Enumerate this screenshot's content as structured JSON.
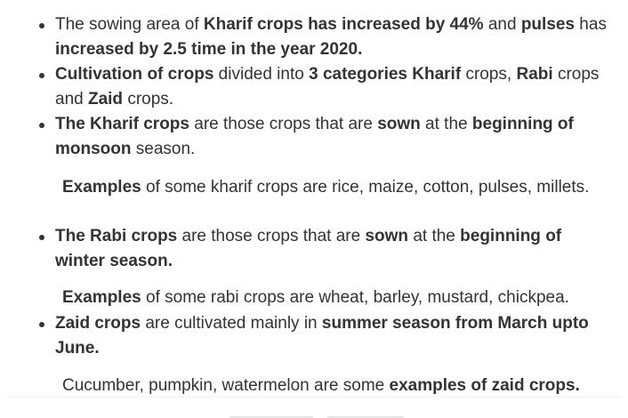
{
  "list1": [
    {
      "segments": [
        {
          "t": "The sowing area of ",
          "b": false
        },
        {
          "t": "Kharif crops has increased by 44%",
          "b": true
        },
        {
          "t": " and ",
          "b": false
        },
        {
          "t": "pulses",
          "b": true
        },
        {
          "t": " has ",
          "b": false
        },
        {
          "t": "increased by 2.5 time in the year 2020.",
          "b": true
        }
      ]
    },
    {
      "segments": [
        {
          "t": "Cultivation of crops",
          "b": true
        },
        {
          "t": " divided into ",
          "b": false
        },
        {
          "t": "3 categories Kharif",
          "b": true
        },
        {
          "t": " crops, ",
          "b": false
        },
        {
          "t": "Rabi",
          "b": true
        },
        {
          "t": " crops and ",
          "b": false
        },
        {
          "t": "Zaid",
          "b": true
        },
        {
          "t": " crops.",
          "b": false
        }
      ]
    },
    {
      "segments": [
        {
          "t": "The Kharif crops",
          "b": true
        },
        {
          "t": " are those crops that are ",
          "b": false
        },
        {
          "t": "sown",
          "b": true
        },
        {
          "t": " at the ",
          "b": false
        },
        {
          "t": "beginning of monsoon",
          "b": true
        },
        {
          "t": " season.",
          "b": false
        }
      ]
    }
  ],
  "para1": {
    "segments": [
      {
        "t": "Examples",
        "b": true
      },
      {
        "t": " of some kharif crops are rice, maize, cotton, pulses, millets.",
        "b": false
      }
    ]
  },
  "list2": [
    {
      "segments": [
        {
          "t": "The Rabi crops",
          "b": true
        },
        {
          "t": " are those crops that are ",
          "b": false
        },
        {
          "t": "sown",
          "b": true
        },
        {
          "t": " at the ",
          "b": false
        },
        {
          "t": "beginning of winter season.",
          "b": true
        }
      ]
    }
  ],
  "para2": {
    "segments": [
      {
        "t": "Examples",
        "b": true
      },
      {
        "t": " of some rabi crops are wheat, barley, mustard, chickpea.",
        "b": false
      }
    ]
  },
  "list3": [
    {
      "segments": [
        {
          "t": "Zaid crops",
          "b": true
        },
        {
          "t": " are cultivated mainly in ",
          "b": false
        },
        {
          "t": "summer season from March upto June.",
          "b": true
        }
      ]
    }
  ],
  "para3": {
    "segments": [
      {
        "t": "Cucumber, pumpkin, watermelon are some ",
        "b": false
      },
      {
        "t": "examples of zaid crops.",
        "b": true
      }
    ]
  }
}
